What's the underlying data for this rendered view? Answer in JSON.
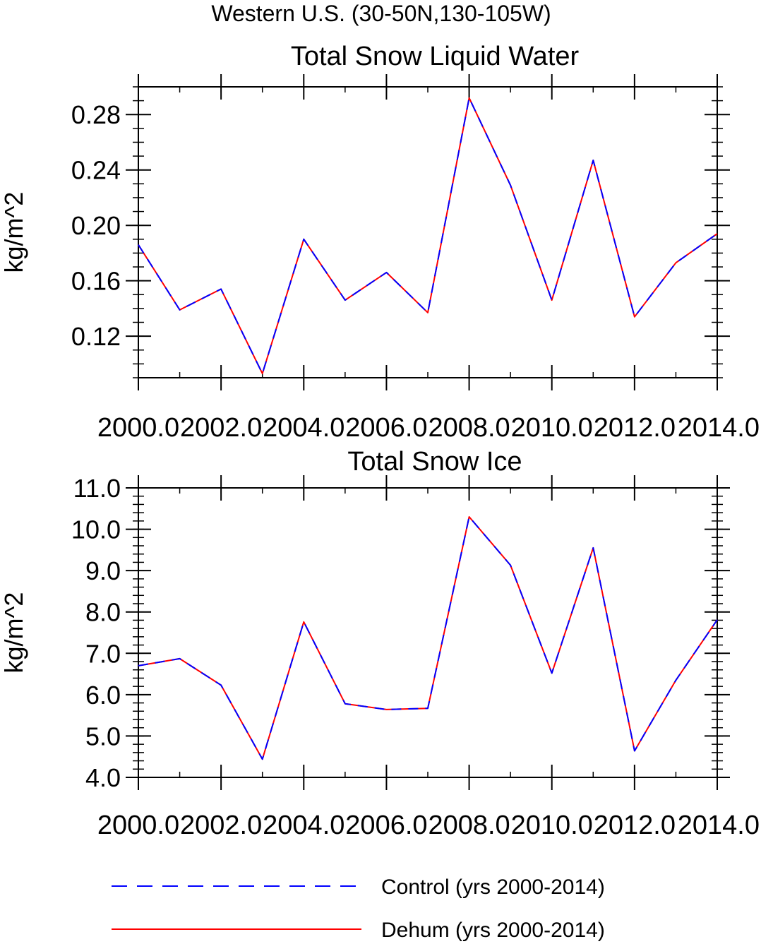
{
  "figure": {
    "title": "Western U.S. (30-50N,130-105W)"
  },
  "colors": {
    "control": "#0000ff",
    "dehum": "#ff0000",
    "axis": "#000000"
  },
  "legend": [
    {
      "label": "Control (yrs 2000-2014)",
      "style": "dashed",
      "color": "#0000ff"
    },
    {
      "label": "Dehum (yrs 2000-2014)",
      "style": "solid",
      "color": "#ff0000"
    }
  ],
  "chart_data": [
    {
      "type": "line",
      "title": "Total Snow Liquid Water",
      "xlabel": "",
      "ylabel": "kg/m^2",
      "xlim": [
        2000,
        2014
      ],
      "ylim": [
        0.09,
        0.3
      ],
      "x": [
        2000,
        2001,
        2002,
        2003,
        2004,
        2005,
        2006,
        2007,
        2008,
        2009,
        2010,
        2011,
        2012,
        2013,
        2014
      ],
      "xticks": [
        2000,
        2002,
        2004,
        2006,
        2008,
        2010,
        2012,
        2014
      ],
      "xtick_labels": [
        "2000.0",
        "2002.0",
        "2004.0",
        "2006.0",
        "2008.0",
        "2010.0",
        "2012.0",
        "2014.0"
      ],
      "yticks": [
        0.12,
        0.16,
        0.2,
        0.24,
        0.28
      ],
      "ytick_labels": [
        "0.12",
        "0.16",
        "0.20",
        "0.24",
        "0.28"
      ],
      "yminor_step": 0.01,
      "series": [
        {
          "name": "Control (yrs 2000-2014)",
          "values": [
            0.186,
            0.139,
            0.154,
            0.093,
            0.19,
            0.146,
            0.166,
            0.137,
            0.292,
            0.229,
            0.146,
            0.247,
            0.134,
            0.173,
            0.194
          ]
        },
        {
          "name": "Dehum (yrs 2000-2014)",
          "values": [
            0.186,
            0.139,
            0.154,
            0.093,
            0.19,
            0.146,
            0.166,
            0.137,
            0.292,
            0.229,
            0.146,
            0.247,
            0.134,
            0.173,
            0.194
          ]
        }
      ]
    },
    {
      "type": "line",
      "title": "Total Snow Ice",
      "xlabel": "",
      "ylabel": "kg/m^2",
      "xlim": [
        2000,
        2014
      ],
      "ylim": [
        4.0,
        11.0
      ],
      "x": [
        2000,
        2001,
        2002,
        2003,
        2004,
        2005,
        2006,
        2007,
        2008,
        2009,
        2010,
        2011,
        2012,
        2013,
        2014
      ],
      "xticks": [
        2000,
        2002,
        2004,
        2006,
        2008,
        2010,
        2012,
        2014
      ],
      "xtick_labels": [
        "2000.0",
        "2002.0",
        "2004.0",
        "2006.0",
        "2008.0",
        "2010.0",
        "2012.0",
        "2014.0"
      ],
      "yticks": [
        4.0,
        5.0,
        6.0,
        7.0,
        8.0,
        9.0,
        10.0,
        11.0
      ],
      "ytick_labels": [
        "4.0",
        "5.0",
        "6.0",
        "7.0",
        "8.0",
        "9.0",
        "10.0",
        "11.0"
      ],
      "yminor_step": 0.2,
      "series": [
        {
          "name": "Control (yrs 2000-2014)",
          "values": [
            6.7,
            6.87,
            6.23,
            4.44,
            7.76,
            5.78,
            5.64,
            5.67,
            10.3,
            9.13,
            6.52,
            9.55,
            4.64,
            6.35,
            7.81
          ]
        },
        {
          "name": "Dehum (yrs 2000-2014)",
          "values": [
            6.7,
            6.87,
            6.23,
            4.44,
            7.76,
            5.78,
            5.64,
            5.67,
            10.3,
            9.13,
            6.52,
            9.55,
            4.64,
            6.35,
            7.81
          ]
        }
      ]
    }
  ]
}
